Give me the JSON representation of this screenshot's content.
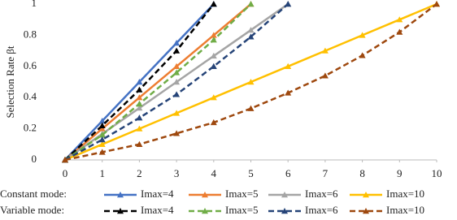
{
  "chart_data": {
    "type": "line",
    "y_label": "Selection Rate βt",
    "xlim": [
      0,
      10
    ],
    "xticks": [
      0,
      1,
      2,
      3,
      4,
      5,
      6,
      7,
      8,
      9,
      10
    ],
    "ylim": [
      0,
      1
    ],
    "yticks": [
      0,
      0.2,
      0.4,
      0.6,
      0.8,
      1
    ],
    "grid": false,
    "groups": [
      "Constant mode:",
      "Variable  mode:"
    ],
    "series": [
      {
        "name": "Imax=4",
        "group": 0,
        "dashed": false,
        "color": "#4472c4",
        "x": [
          0,
          1,
          2,
          3,
          4
        ],
        "values": [
          0,
          0.25,
          0.5,
          0.75,
          1
        ]
      },
      {
        "name": "Imax=5",
        "group": 0,
        "dashed": false,
        "color": "#ed7d31",
        "x": [
          0,
          1,
          2,
          3,
          4,
          5
        ],
        "values": [
          0,
          0.2,
          0.4,
          0.6,
          0.8,
          1
        ]
      },
      {
        "name": "Imax=6",
        "group": 0,
        "dashed": false,
        "color": "#a5a5a5",
        "x": [
          0,
          1,
          2,
          3,
          4,
          5,
          6
        ],
        "values": [
          0,
          0.167,
          0.333,
          0.5,
          0.667,
          0.833,
          1
        ]
      },
      {
        "name": "Imax=10",
        "group": 0,
        "dashed": false,
        "color": "#ffc000",
        "x": [
          0,
          1,
          2,
          3,
          4,
          5,
          6,
          7,
          8,
          9,
          10
        ],
        "values": [
          0,
          0.1,
          0.2,
          0.3,
          0.4,
          0.5,
          0.6,
          0.7,
          0.8,
          0.9,
          1
        ]
      },
      {
        "name": "Imax=4",
        "group": 1,
        "dashed": true,
        "color": "#000000",
        "x": [
          0,
          1,
          2,
          3,
          4
        ],
        "values": [
          0,
          0.22,
          0.45,
          0.7,
          1
        ]
      },
      {
        "name": "Imax=5",
        "group": 1,
        "dashed": true,
        "color": "#70ad47",
        "x": [
          0,
          1,
          2,
          3,
          4,
          5
        ],
        "values": [
          0,
          0.16,
          0.36,
          0.56,
          0.77,
          1
        ]
      },
      {
        "name": "Imax=6",
        "group": 1,
        "dashed": true,
        "color": "#264478",
        "x": [
          0,
          1,
          2,
          3,
          4,
          5,
          6
        ],
        "values": [
          0,
          0.13,
          0.27,
          0.42,
          0.6,
          0.79,
          1
        ]
      },
      {
        "name": "Imax=10",
        "group": 1,
        "dashed": true,
        "color": "#9e480e",
        "x": [
          0,
          1,
          2,
          3,
          4,
          5,
          6,
          7,
          8,
          9,
          10
        ],
        "values": [
          0,
          0.05,
          0.1,
          0.17,
          0.24,
          0.33,
          0.43,
          0.54,
          0.67,
          0.82,
          1
        ]
      }
    ]
  }
}
